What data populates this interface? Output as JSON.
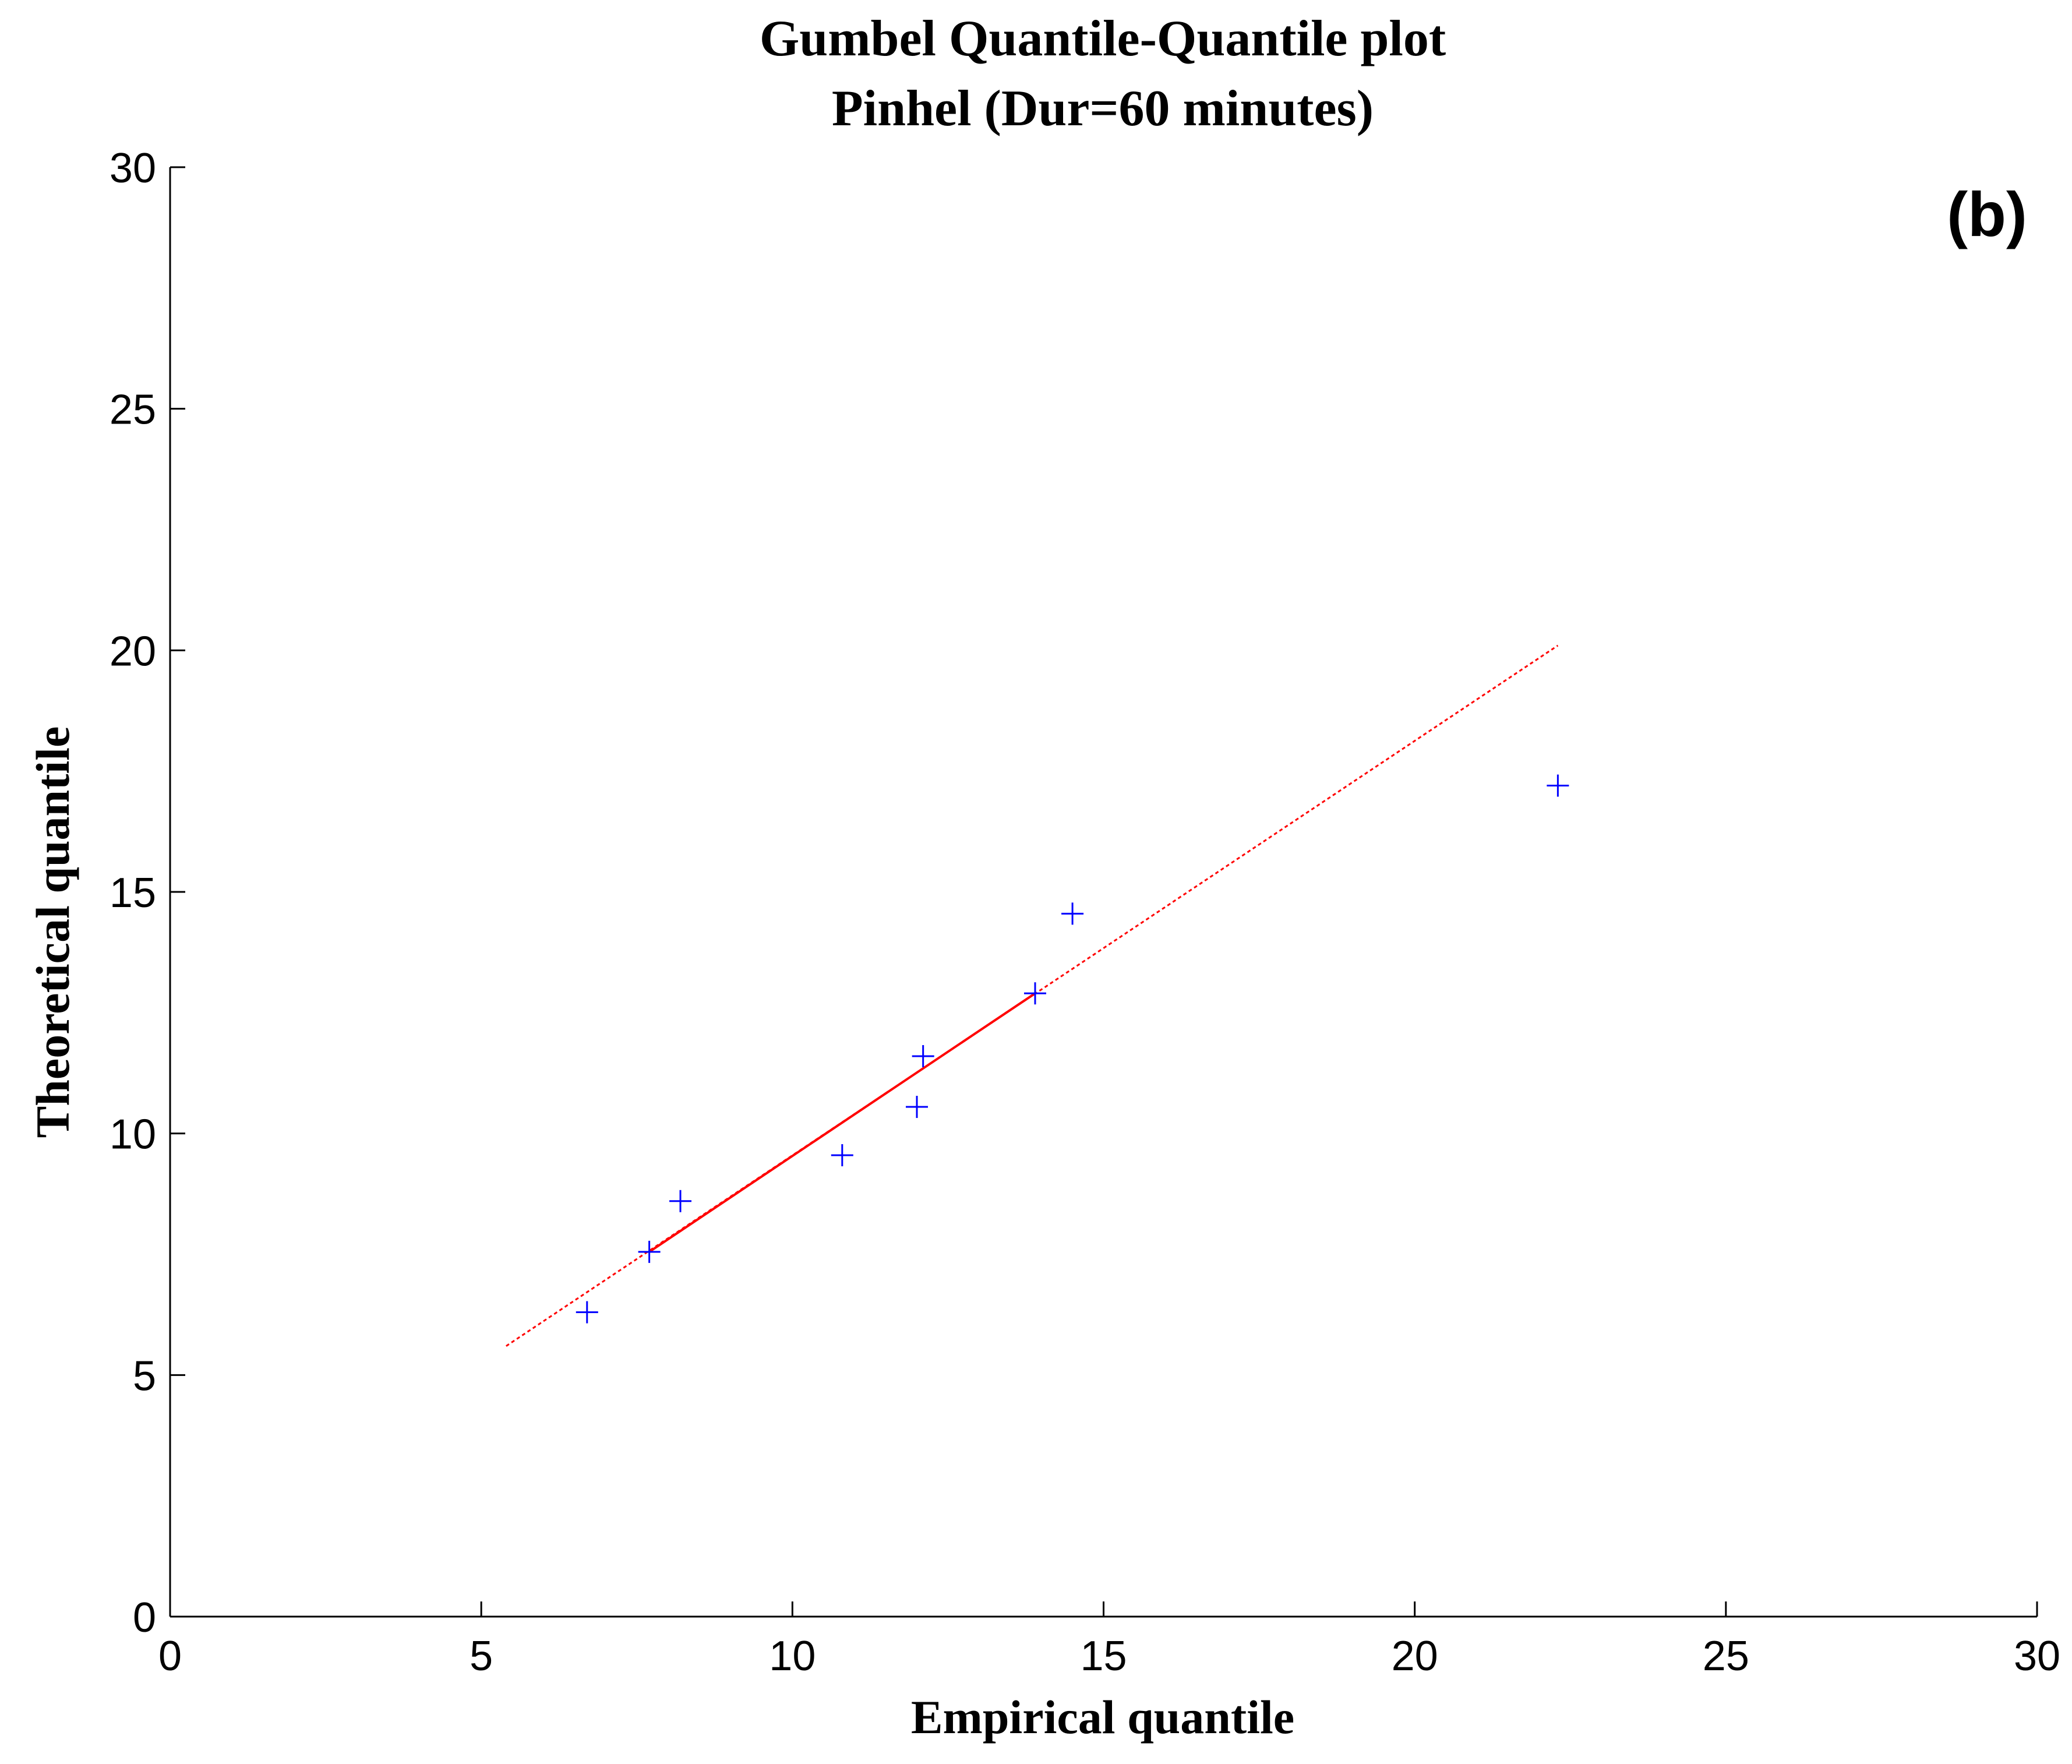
{
  "chart_data": {
    "type": "scatter",
    "title": "Gumbel Quantile-Quantile plot",
    "subtitle": "Pinhel (Dur=60 minutes)",
    "panel_label": "(b)",
    "xlabel": "Empirical quantile",
    "ylabel": "Theoretical quantile",
    "xlim": [
      0,
      30
    ],
    "ylim": [
      0,
      30
    ],
    "x_ticks": [
      0,
      5,
      10,
      15,
      20,
      25,
      30
    ],
    "y_ticks": [
      0,
      5,
      10,
      15,
      20,
      25,
      30
    ],
    "x_tick_labels": [
      "0",
      "5",
      "10",
      "15",
      "20",
      "25",
      "30"
    ],
    "y_tick_labels": [
      "0",
      "5",
      "10",
      "15",
      "20",
      "25",
      "30"
    ],
    "grid": false,
    "series": [
      {
        "marker": "+",
        "color": "#0000ff",
        "points": [
          {
            "x": 6.7,
            "y": 6.3
          },
          {
            "x": 7.7,
            "y": 7.55
          },
          {
            "x": 8.2,
            "y": 8.6
          },
          {
            "x": 10.8,
            "y": 9.55
          },
          {
            "x": 12.0,
            "y": 10.55
          },
          {
            "x": 12.1,
            "y": 11.6
          },
          {
            "x": 13.9,
            "y": 12.9
          },
          {
            "x": 14.5,
            "y": 14.55
          },
          {
            "x": 22.3,
            "y": 17.2
          }
        ]
      }
    ],
    "reference_lines": [
      {
        "style": "solid",
        "color": "#ff0000",
        "x": [
          7.7,
          13.9
        ],
        "y": [
          7.55,
          12.9
        ]
      },
      {
        "style": "dotted",
        "color": "#ff0000",
        "x": [
          5.4,
          22.3
        ],
        "y": [
          5.6,
          20.1
        ]
      }
    ]
  }
}
